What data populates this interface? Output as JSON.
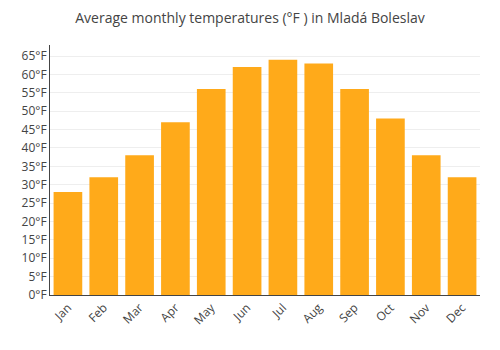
{
  "chart_data": {
    "type": "bar",
    "title": "Average monthly temperatures (°F ) in Mladá Boleslav",
    "categories": [
      "Jan",
      "Feb",
      "Mar",
      "Apr",
      "May",
      "Jun",
      "Jul",
      "Aug",
      "Sep",
      "Oct",
      "Nov",
      "Dec"
    ],
    "values": [
      28,
      32,
      38,
      47,
      56,
      62,
      64,
      63,
      56,
      48,
      38,
      32
    ],
    "color": "#FFAA1A",
    "ylim": [
      0,
      68
    ],
    "yticks": [
      {
        "value": 0,
        "label": "0°F"
      },
      {
        "value": 5,
        "label": "5°F"
      },
      {
        "value": 10,
        "label": "10°F"
      },
      {
        "value": 15,
        "label": "15°F"
      },
      {
        "value": 20,
        "label": "20°F"
      },
      {
        "value": 25,
        "label": "25°F"
      },
      {
        "value": 30,
        "label": "30°F"
      },
      {
        "value": 35,
        "label": "35°F"
      },
      {
        "value": 40,
        "label": "40°F"
      },
      {
        "value": 45,
        "label": "45°F"
      },
      {
        "value": 50,
        "label": "50°F"
      },
      {
        "value": 55,
        "label": "55°F"
      },
      {
        "value": 60,
        "label": "60°F"
      },
      {
        "value": 65,
        "label": "65°F"
      }
    ],
    "grid": true
  }
}
